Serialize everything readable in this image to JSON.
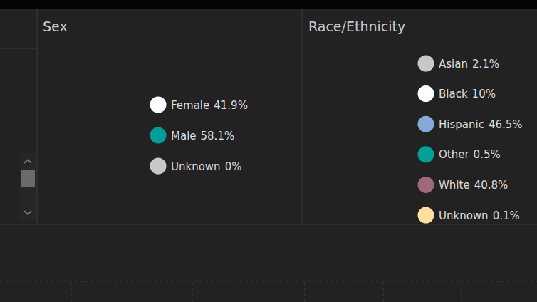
{
  "chart_data": [
    {
      "type": "pie",
      "title": "Sex",
      "categories": [
        "Female",
        "Male",
        "Unknown"
      ],
      "values": [
        41.9,
        58.1,
        0
      ],
      "value_labels": [
        "41.9%",
        "58.1%",
        "0%"
      ],
      "colors": [
        "#ffffff",
        "#009e99",
        "#c8c8c8"
      ],
      "legend": "right"
    },
    {
      "type": "pie",
      "title": "Race/Ethnicity",
      "categories": [
        "Asian",
        "Black",
        "Hispanic",
        "Other",
        "White",
        "Unknown"
      ],
      "values": [
        2.1,
        10,
        46.5,
        0.5,
        40.8,
        0.1
      ],
      "value_labels": [
        "2.1%",
        "10%",
        "46.5%",
        "0.5%",
        "40.8%",
        "0.1%"
      ],
      "colors": [
        "#c8c8c8",
        "#ffffff",
        "#86aad8",
        "#00a09a",
        "#a06878",
        "#ffe0a0"
      ],
      "legend": "right"
    }
  ]
}
